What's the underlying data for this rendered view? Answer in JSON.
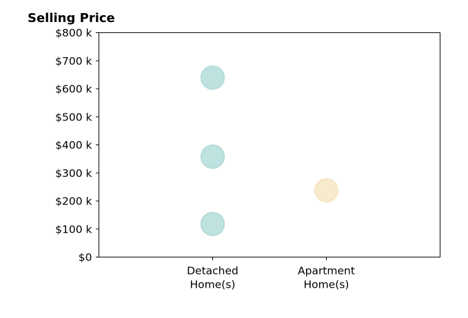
{
  "chart_data": {
    "type": "scatter",
    "title": "Selling Price",
    "xlabel": "",
    "ylabel": "",
    "categories": [
      [
        "Detached",
        "Home(s)"
      ],
      [
        "Apartment",
        "Home(s)"
      ]
    ],
    "x_positions": [
      1,
      2
    ],
    "xlim": [
      0,
      3
    ],
    "ylim": [
      0,
      800
    ],
    "yticks": [
      {
        "value": 0,
        "label": "$0"
      },
      {
        "value": 100,
        "label": "$100 k"
      },
      {
        "value": 200,
        "label": "$200 k"
      },
      {
        "value": 300,
        "label": "$300 k"
      },
      {
        "value": 400,
        "label": "$400 k"
      },
      {
        "value": 500,
        "label": "$500 k"
      },
      {
        "value": 600,
        "label": "$600 k"
      },
      {
        "value": 700,
        "label": "$700 k"
      },
      {
        "value": 800,
        "label": "$800 k"
      }
    ],
    "points": [
      {
        "category": 0,
        "x": 1,
        "y": 640,
        "color": "#a8d8d4"
      },
      {
        "category": 0,
        "x": 1,
        "y": 358,
        "color": "#a8d8d4"
      },
      {
        "category": 0,
        "x": 1,
        "y": 118,
        "color": "#a8d8d4"
      },
      {
        "category": 1,
        "x": 2,
        "y": 238,
        "color": "#f5e3bc"
      }
    ],
    "grid": false,
    "legend": "none"
  }
}
